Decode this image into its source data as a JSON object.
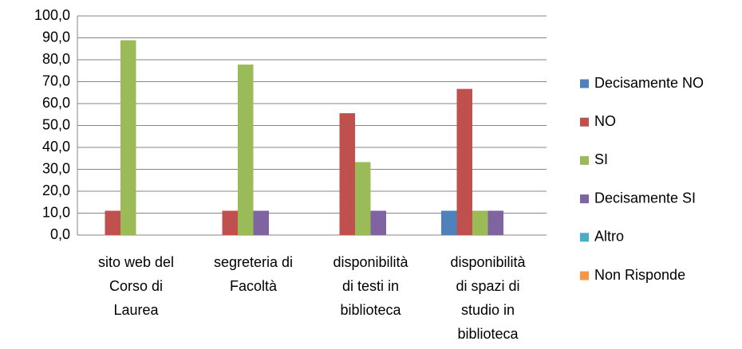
{
  "chart_data": {
    "type": "bar",
    "categories": [
      [
        "sito web del",
        "Corso di",
        "Laurea"
      ],
      [
        "segreteria di",
        "Facoltà"
      ],
      [
        "disponibilità",
        "di testi in",
        "biblioteca"
      ],
      [
        "disponibilità",
        "di spazi di",
        "studio in",
        "biblioteca"
      ]
    ],
    "series": [
      {
        "name": "Decisamente NO",
        "color": "#4f81bd",
        "values": [
          0,
          0,
          0,
          11.1
        ]
      },
      {
        "name": "NO",
        "color": "#c0504d",
        "values": [
          11.1,
          11.1,
          55.6,
          66.7
        ]
      },
      {
        "name": "SI",
        "color": "#9bbb59",
        "values": [
          88.9,
          77.8,
          33.3,
          11.1
        ]
      },
      {
        "name": "Decisamente SI",
        "color": "#8064a2",
        "values": [
          0,
          11.1,
          11.1,
          11.1
        ]
      },
      {
        "name": "Altro",
        "color": "#4bacc6",
        "values": [
          0,
          0,
          0,
          0
        ]
      },
      {
        "name": "Non Risponde",
        "color": "#f79646",
        "values": [
          0,
          0,
          0,
          0
        ]
      }
    ],
    "ylim": [
      0,
      100
    ],
    "yticks": [
      {
        "value": 0,
        "label": "0,0"
      },
      {
        "value": 10,
        "label": "10,0"
      },
      {
        "value": 20,
        "label": "20,0"
      },
      {
        "value": 30,
        "label": "30,0"
      },
      {
        "value": 40,
        "label": "40,0"
      },
      {
        "value": 50,
        "label": "50,0"
      },
      {
        "value": 60,
        "label": "60,0"
      },
      {
        "value": 70,
        "label": "70,0"
      },
      {
        "value": 80,
        "label": "80,0"
      },
      {
        "value": 90,
        "label": "90,0"
      },
      {
        "value": 100,
        "label": "100,0"
      }
    ],
    "grid": true,
    "legend": "right"
  }
}
